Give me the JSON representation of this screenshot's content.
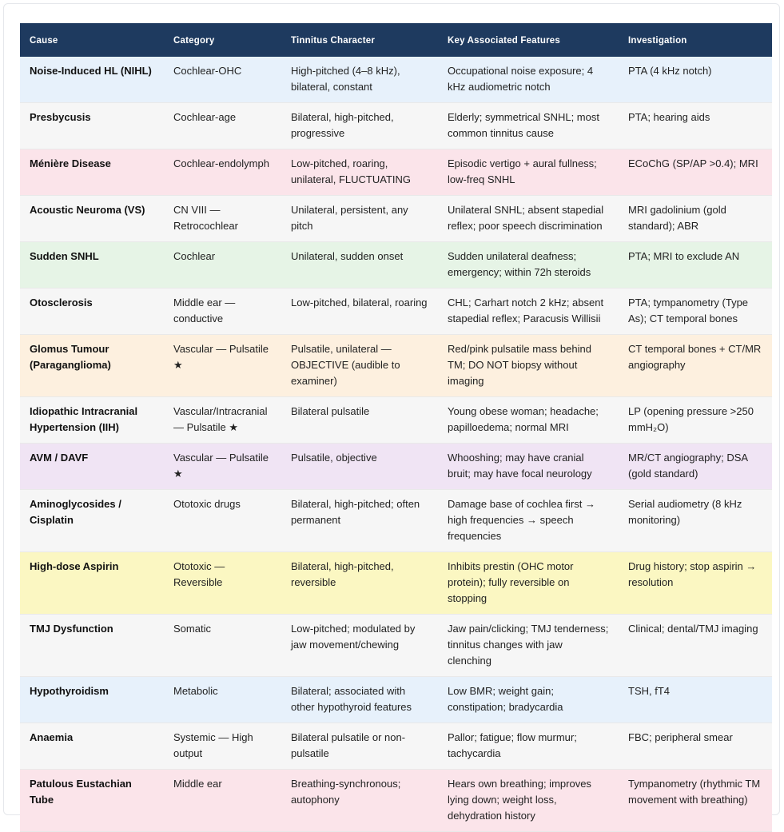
{
  "table": {
    "headers": [
      "Cause",
      "Category",
      "Tinnitus Character",
      "Key Associated Features",
      "Investigation"
    ],
    "rows": [
      {
        "tone": "blue",
        "cells": [
          "Noise-Induced HL (NIHL)",
          "Cochlear-OHC",
          "High-pitched (4–8 kHz), bilateral, constant",
          "Occupational noise exposure; 4 kHz audiometric notch",
          "PTA (4 kHz notch)"
        ]
      },
      {
        "tone": "gray",
        "cells": [
          "Presbycusis",
          "Cochlear-age",
          "Bilateral, high-pitched, progressive",
          "Elderly; symmetrical SNHL; most common tinnitus cause",
          "PTA; hearing aids"
        ]
      },
      {
        "tone": "pink",
        "cells": [
          "Ménière Disease",
          "Cochlear-endolymph",
          "Low-pitched, roaring, unilateral, FLUCTUATING",
          "Episodic vertigo + aural fullness; low-freq SNHL",
          "ECoChG (SP/AP >0.4); MRI"
        ]
      },
      {
        "tone": "gray",
        "cells": [
          "Acoustic Neuroma (VS)",
          "CN VIII — Retrocochlear",
          "Unilateral, persistent, any pitch",
          "Unilateral SNHL; absent stapedial reflex; poor speech discrimination",
          "MRI gadolinium (gold standard); ABR"
        ]
      },
      {
        "tone": "green",
        "cells": [
          "Sudden SNHL",
          "Cochlear",
          "Unilateral, sudden onset",
          "Sudden unilateral deafness; emergency; within 72h steroids",
          "PTA; MRI to exclude AN"
        ]
      },
      {
        "tone": "gray",
        "cells": [
          "Otosclerosis",
          "Middle ear — conductive",
          "Low-pitched, bilateral, roaring",
          "CHL; Carhart notch 2 kHz; absent stapedial reflex; Paracusis Willisii",
          "PTA; tympanometry (Type As); CT temporal bones"
        ]
      },
      {
        "tone": "orange",
        "cells": [
          "Glomus Tumour (Paraganglioma)",
          "Vascular — Pulsatile ★",
          "Pulsatile, unilateral — OBJECTIVE (audible to examiner)",
          "Red/pink pulsatile mass behind TM; DO NOT biopsy without imaging",
          "CT temporal bones + CT/MR angiography"
        ]
      },
      {
        "tone": "gray",
        "cells": [
          "Idiopathic Intracranial Hypertension (IIH)",
          "Vascular/Intracranial — Pulsatile ★",
          "Bilateral pulsatile",
          "Young obese woman; headache; papilloedema; normal MRI",
          "LP (opening pressure >250 mmH₂O)"
        ]
      },
      {
        "tone": "purple",
        "cells": [
          "AVM / DAVF",
          "Vascular — Pulsatile ★",
          "Pulsatile, objective",
          "Whooshing; may have cranial bruit; may have focal neurology",
          "MR/CT angiography; DSA (gold standard)"
        ]
      },
      {
        "tone": "gray",
        "cells": [
          "Aminoglycosides / Cisplatin",
          "Ototoxic drugs",
          "Bilateral, high-pitched; often permanent",
          "Damage base of cochlea first → high frequencies → speech frequencies",
          "Serial audiometry (8 kHz monitoring)"
        ]
      },
      {
        "tone": "yellow",
        "cells": [
          "High-dose Aspirin",
          "Ototoxic — Reversible",
          "Bilateral, high-pitched, reversible",
          "Inhibits prestin (OHC motor protein); fully reversible on stopping",
          "Drug history; stop aspirin → resolution"
        ]
      },
      {
        "tone": "gray",
        "cells": [
          "TMJ Dysfunction",
          "Somatic",
          "Low-pitched; modulated by jaw movement/chewing",
          "Jaw pain/clicking; TMJ tenderness; tinnitus changes with jaw clenching",
          "Clinical; dental/TMJ imaging"
        ]
      },
      {
        "tone": "blue",
        "cells": [
          "Hypothyroidism",
          "Metabolic",
          "Bilateral; associated with other hypothyroid features",
          "Low BMR; weight gain; constipation; bradycardia",
          "TSH, fT4"
        ]
      },
      {
        "tone": "gray",
        "cells": [
          "Anaemia",
          "Systemic — High output",
          "Bilateral pulsatile or non-pulsatile",
          "Pallor; fatigue; flow murmur; tachycardia",
          "FBC; peripheral smear"
        ]
      },
      {
        "tone": "pink",
        "cells": [
          "Patulous Eustachian Tube",
          "Middle ear",
          "Breathing-synchronous; autophony",
          "Hears own breathing; improves lying down; weight loss, dehydration history",
          "Tympanometry (rhythmic TM movement with breathing)"
        ]
      }
    ]
  },
  "colors": {
    "header_bg": "#1e3a5f",
    "blue": "#e7f1fb",
    "gray": "#f6f6f6",
    "pink": "#fbe4ea",
    "green": "#e6f4e6",
    "orange": "#fdf0df",
    "purple": "#f0e4f4",
    "yellow": "#fbf7c2"
  }
}
